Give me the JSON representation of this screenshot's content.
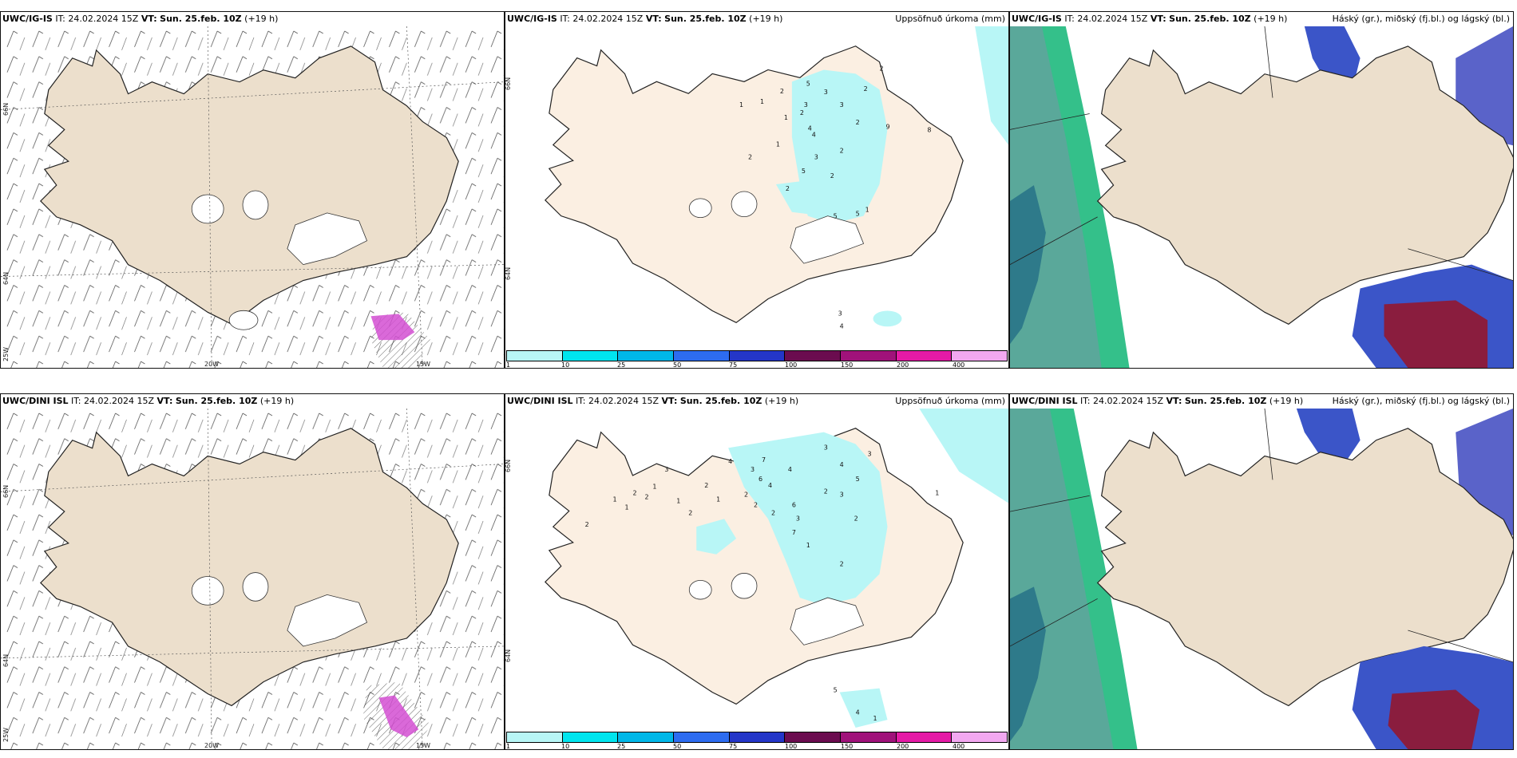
{
  "rows": [
    {
      "model": "UWC/IG-IS",
      "it_label": "IT:",
      "it_value": "24.02.2024 15Z",
      "vt_label": "VT:",
      "vt_value": "Sun. 25.feb. 10Z",
      "lead": "(+19 h)"
    },
    {
      "model": "UWC/DINI ISL",
      "it_label": "IT:",
      "it_value": "24.02.2024 15Z",
      "vt_label": "VT:",
      "vt_value": "Sun. 25.feb. 10Z",
      "lead": "(+19 h)"
    }
  ],
  "panels": {
    "wind": {
      "coords": {
        "lat_top": "66N",
        "lat_mid": "64N",
        "lat_bottom": "25W",
        "lon_left": "20W",
        "lon_right": "15W"
      }
    },
    "precip": {
      "right_title": "Uppsöfnuð úrkoma (mm)",
      "coord_lat_top": "66N",
      "coord_lat_bottom": "64N",
      "legend": {
        "ticks": [
          "1",
          "10",
          "25",
          "50",
          "75",
          "100",
          "150",
          "200",
          "400"
        ],
        "colors": [
          "#b8f6f6",
          "#00e5ee",
          "#00b7e8",
          "#2d6cf0",
          "#2436c8",
          "#6b0c4f",
          "#a0127a",
          "#e51aa6",
          "#f2a8f0"
        ]
      },
      "numbers_top": [
        "1",
        "1",
        "2",
        "1",
        "5",
        "3",
        "3",
        "3",
        "2",
        "2",
        "4",
        "2",
        "2",
        "1",
        "2",
        "4",
        "3",
        "5",
        "2",
        "2",
        "5",
        "5",
        "1",
        "3",
        "4",
        "2",
        "9",
        "8"
      ],
      "numbers_bottom": [
        "2",
        "1",
        "1",
        "2",
        "2",
        "1",
        "3",
        "1",
        "2",
        "2",
        "1",
        "4",
        "7",
        "3",
        "6",
        "4",
        "2",
        "2",
        "2",
        "4",
        "6",
        "3",
        "7",
        "2",
        "1",
        "3",
        "4",
        "5",
        "3",
        "3",
        "2",
        "2",
        "4",
        "1",
        "5",
        "1"
      ]
    },
    "cloud": {
      "right_title": "Háský (gr.), miðský (fj.bl.) og lágský (bl.)"
    }
  },
  "colors": {
    "land": "#ecdfcc",
    "land_precip": "#fbefe2",
    "coast": "#222222",
    "precip_light": "#b8f6f6",
    "cloud_high_green": "#34c08a",
    "cloud_high_teal": "#5aa89a",
    "cloud_mid_blue": "#3b55c8",
    "cloud_low_red": "#8a1d3e",
    "wind_hatch_magenta": "#d44fd2"
  }
}
